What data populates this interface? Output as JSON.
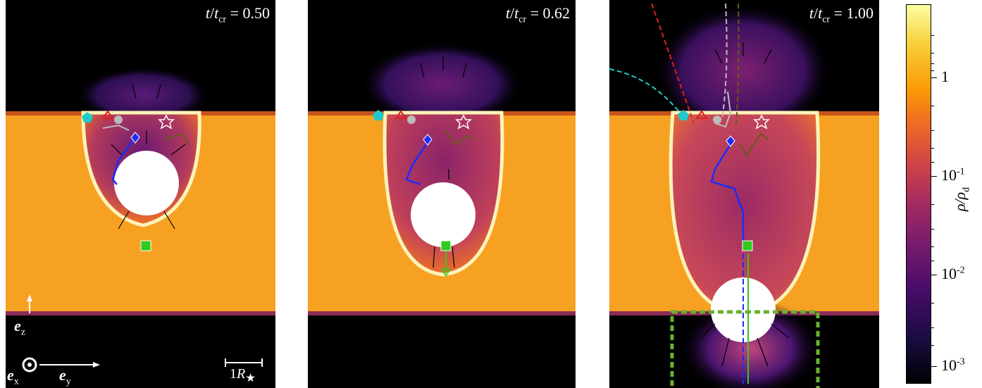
{
  "panels": [
    {
      "time_var": "t",
      "time_sub": "cr",
      "time_eq": "= 0.50"
    },
    {
      "time_var": "t",
      "time_sub": "cr",
      "time_eq": "= 0.62"
    },
    {
      "time_var": "t",
      "time_sub": "cr",
      "time_eq": "= 1.00"
    }
  ],
  "axes": {
    "ez": "e",
    "ez_sub": "z",
    "ex": "e",
    "ex_sub": "x",
    "ey": "e",
    "ey_sub": "y"
  },
  "scalebar": {
    "num": "1",
    "sym": "R",
    "star": "★"
  },
  "colorbar": {
    "title_var": "ρ/ρ",
    "title_sub": "d",
    "ticks": [
      {
        "base": "1",
        "exp": ""
      },
      {
        "base": "10",
        "exp": "-1"
      },
      {
        "base": "10",
        "exp": "-2"
      },
      {
        "base": "10",
        "exp": "-3"
      }
    ],
    "scale": "log"
  },
  "colors": {
    "background": "#000000",
    "disk": "#f7a123",
    "cavity": "#ffffff",
    "marker_cyan": "#20c9c9",
    "marker_red": "#e0221c",
    "marker_grey": "#bcbcbc",
    "marker_blue": "#1a2cff",
    "marker_green": "#2fcb1e",
    "marker_olive": "#6b5a18",
    "box_green": "#6ab12f"
  }
}
